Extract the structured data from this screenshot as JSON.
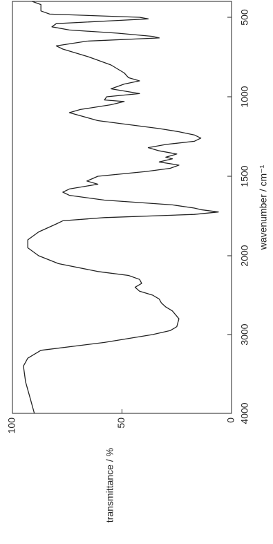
{
  "chart_data": {
    "type": "line",
    "x_label": "wavenumber / cm⁻¹",
    "y_label": "transmittance / %",
    "x": [
      4000,
      3800,
      3600,
      3400,
      3300,
      3200,
      3100,
      3000,
      2950,
      2900,
      2800,
      2700,
      2650,
      2600,
      2550,
      2500,
      2450,
      2400,
      2350,
      2300,
      2250,
      2200,
      2100,
      2000,
      1950,
      1900,
      1850,
      1800,
      1780,
      1760,
      1740,
      1725,
      1710,
      1700,
      1680,
      1650,
      1620,
      1600,
      1580,
      1550,
      1530,
      1500,
      1470,
      1450,
      1430,
      1410,
      1390,
      1380,
      1360,
      1340,
      1320,
      1300,
      1280,
      1260,
      1240,
      1220,
      1200,
      1150,
      1100,
      1080,
      1050,
      1030,
      1020,
      1000,
      980,
      950,
      920,
      900,
      880,
      850,
      800,
      750,
      700,
      680,
      650,
      630,
      620,
      600,
      580,
      560,
      540,
      520,
      510,
      500,
      480,
      460,
      440,
      420,
      400
    ],
    "series": [
      {
        "color": "#222222",
        "values": [
          90,
          92,
          94,
          95,
          93,
          87,
          58,
          36,
          28,
          25,
          24,
          27,
          30,
          32,
          33,
          36,
          42,
          44,
          41,
          42,
          47,
          61,
          79,
          88,
          93,
          93,
          88,
          80,
          77,
          58,
          17,
          6,
          14,
          17,
          27,
          58,
          74,
          77,
          74,
          61,
          66,
          61,
          39,
          28,
          24,
          33,
          27,
          30,
          25,
          33,
          38,
          30,
          17,
          14,
          17,
          24,
          33,
          61,
          74,
          69,
          55,
          49,
          58,
          57,
          42,
          55,
          49,
          42,
          47,
          49,
          55,
          65,
          77,
          80,
          66,
          33,
          36,
          52,
          74,
          82,
          80,
          52,
          38,
          42,
          83,
          87,
          87,
          87,
          91
        ]
      }
    ],
    "xlim": [
      4000,
      400
    ],
    "x_scale_break": 2000,
    "xticks": [
      4000,
      3000,
      2000,
      1500,
      1000,
      500
    ],
    "ylim": [
      0,
      100
    ],
    "yticks": [
      0,
      50,
      100
    ]
  }
}
